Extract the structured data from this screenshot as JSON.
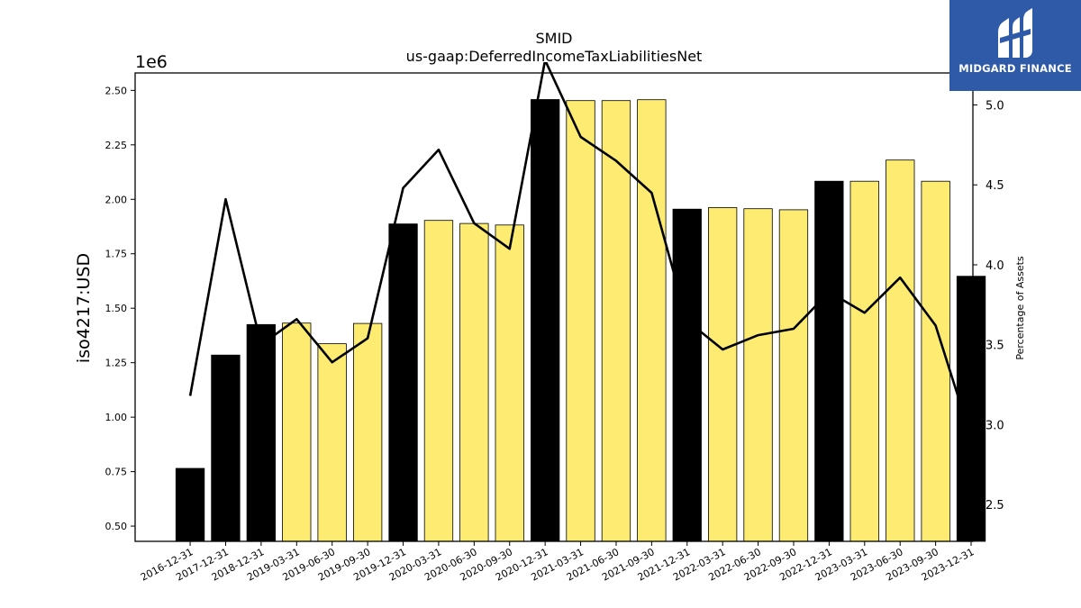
{
  "chart_data": {
    "type": "bar",
    "title": "SMID",
    "subtitle": "us-gaap:DeferredIncomeTaxLiabilitiesNet",
    "ylabel": "iso4217:USD",
    "y_offset_label": "1e6",
    "y2label": "Percentage of Assets",
    "ylim": [
      0.43,
      2.58
    ],
    "y2lim": [
      2.27,
      5.2
    ],
    "y_ticks": [
      "0.50",
      "0.75",
      "1.00",
      "1.25",
      "1.50",
      "1.75",
      "2.00",
      "2.25",
      "2.50"
    ],
    "y_tick_values": [
      0.5,
      0.75,
      1.0,
      1.25,
      1.5,
      1.75,
      2.0,
      2.25,
      2.5
    ],
    "y2_ticks": [
      "2.5",
      "3.0",
      "3.5",
      "4.0",
      "4.5",
      "5.0"
    ],
    "y2_tick_values": [
      2.5,
      3.0,
      3.5,
      4.0,
      4.5,
      5.0
    ],
    "categories": [
      "2016-12-31",
      "2017-12-31",
      "2018-12-31",
      "2019-03-31",
      "2019-06-30",
      "2019-09-30",
      "2019-12-31",
      "2020-03-31",
      "2020-06-30",
      "2020-09-30",
      "2020-12-31",
      "2021-03-31",
      "2021-06-30",
      "2021-09-30",
      "2021-12-31",
      "2022-03-31",
      "2022-06-30",
      "2022-09-30",
      "2022-12-31",
      "2023-03-31",
      "2023-06-30",
      "2023-09-30",
      "2023-12-31"
    ],
    "series": [
      {
        "values": [
          0.765,
          1.285,
          1.425,
          1.432,
          1.337,
          1.43,
          1.887,
          1.903,
          1.889,
          1.882,
          2.458,
          2.453,
          2.453,
          2.457,
          1.955,
          1.962,
          1.957,
          1.952,
          2.083,
          2.083,
          2.18,
          2.083,
          1.647
        ],
        "annual": [
          true,
          true,
          true,
          false,
          false,
          false,
          true,
          false,
          false,
          false,
          true,
          false,
          false,
          false,
          true,
          false,
          false,
          false,
          true,
          false,
          false,
          false,
          true
        ]
      },
      {
        "axis": "right",
        "type": "line",
        "values": [
          3.18,
          4.41,
          3.5,
          3.66,
          3.39,
          3.54,
          4.48,
          4.72,
          4.26,
          4.1,
          5.28,
          4.8,
          4.65,
          4.45,
          3.65,
          3.47,
          3.56,
          3.6,
          3.83,
          3.7,
          3.92,
          3.62,
          2.92
        ]
      }
    ],
    "colors": {
      "annual_bar": "#000000",
      "quarter_bar": "#fdeb72",
      "line": "#000000"
    }
  },
  "logo": {
    "text": "MIDGARD FINANCE",
    "background": "#2f5aa8"
  }
}
